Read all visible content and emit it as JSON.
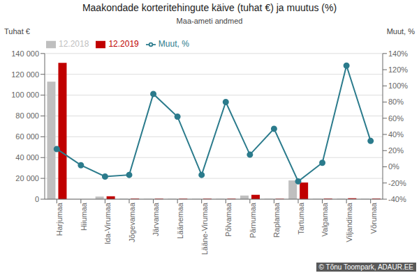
{
  "chart_data": {
    "type": "bar",
    "title": "Maakondade korteritehingute käive (tuhat €) ja muutus (%)",
    "subtitle": "Maa-ameti andmed",
    "ylabel": "Tuhat €",
    "y2label": "Muut, %",
    "categories": [
      "Harjumaa",
      "Hiiumaa",
      "Ida-Virumaa",
      "Jõgevamaa",
      "Järvamaa",
      "Läänemaa",
      "Lääne-Virumaa",
      "Põlvamaa",
      "Pärnumaa",
      "Raplamaa",
      "Tartumaa",
      "Valgamaa",
      "Viljandimaa",
      "Võrumaa"
    ],
    "series": [
      {
        "name": "12.2018",
        "color": "#bfbfbf",
        "values": [
          113000,
          0,
          2500,
          500,
          400,
          400,
          400,
          400,
          3500,
          400,
          18000,
          400,
          500,
          400
        ]
      },
      {
        "name": "12.2019",
        "color": "#c00000",
        "values": [
          131000,
          0,
          2800,
          600,
          500,
          500,
          500,
          500,
          4200,
          400,
          16000,
          600,
          900,
          600
        ]
      },
      {
        "name": "Muut, %",
        "color": "#2b7b8c",
        "type": "line",
        "axis": "y2",
        "marker": "circle",
        "values": [
          22,
          2,
          -12,
          -10,
          90,
          62,
          -10,
          80,
          15,
          47,
          -18,
          5,
          125,
          32
        ]
      }
    ],
    "ylim": [
      0,
      140000
    ],
    "yticks": [
      0,
      {
        "value": 20000,
        "label": "20 000"
      },
      {
        "value": 40000,
        "label": "40 000"
      },
      {
        "value": 60000,
        "label": "60 000"
      },
      {
        "value": 80000,
        "label": "80 000"
      },
      {
        "value": 100000,
        "label": "100 000"
      },
      {
        "value": 120000,
        "label": "120 000"
      },
      {
        "value": 140000,
        "label": "140 000"
      }
    ],
    "y2lim": [
      -40,
      140
    ],
    "y2ticks": [
      {
        "value": -40,
        "label": "-40%"
      },
      {
        "value": -20,
        "label": "-20%"
      },
      {
        "value": 0,
        "label": "0%"
      },
      {
        "value": 20,
        "label": "20%"
      },
      {
        "value": 40,
        "label": "40%"
      },
      {
        "value": 60,
        "label": "60%"
      },
      {
        "value": 80,
        "label": "80%"
      },
      {
        "value": 100,
        "label": "100%"
      },
      {
        "value": 120,
        "label": "120%"
      },
      {
        "value": 140,
        "label": "140%"
      }
    ],
    "grid": true,
    "legend": "upper left",
    "annotations": [
      "© Tõnu Toompark, ADAUR.EE"
    ]
  }
}
